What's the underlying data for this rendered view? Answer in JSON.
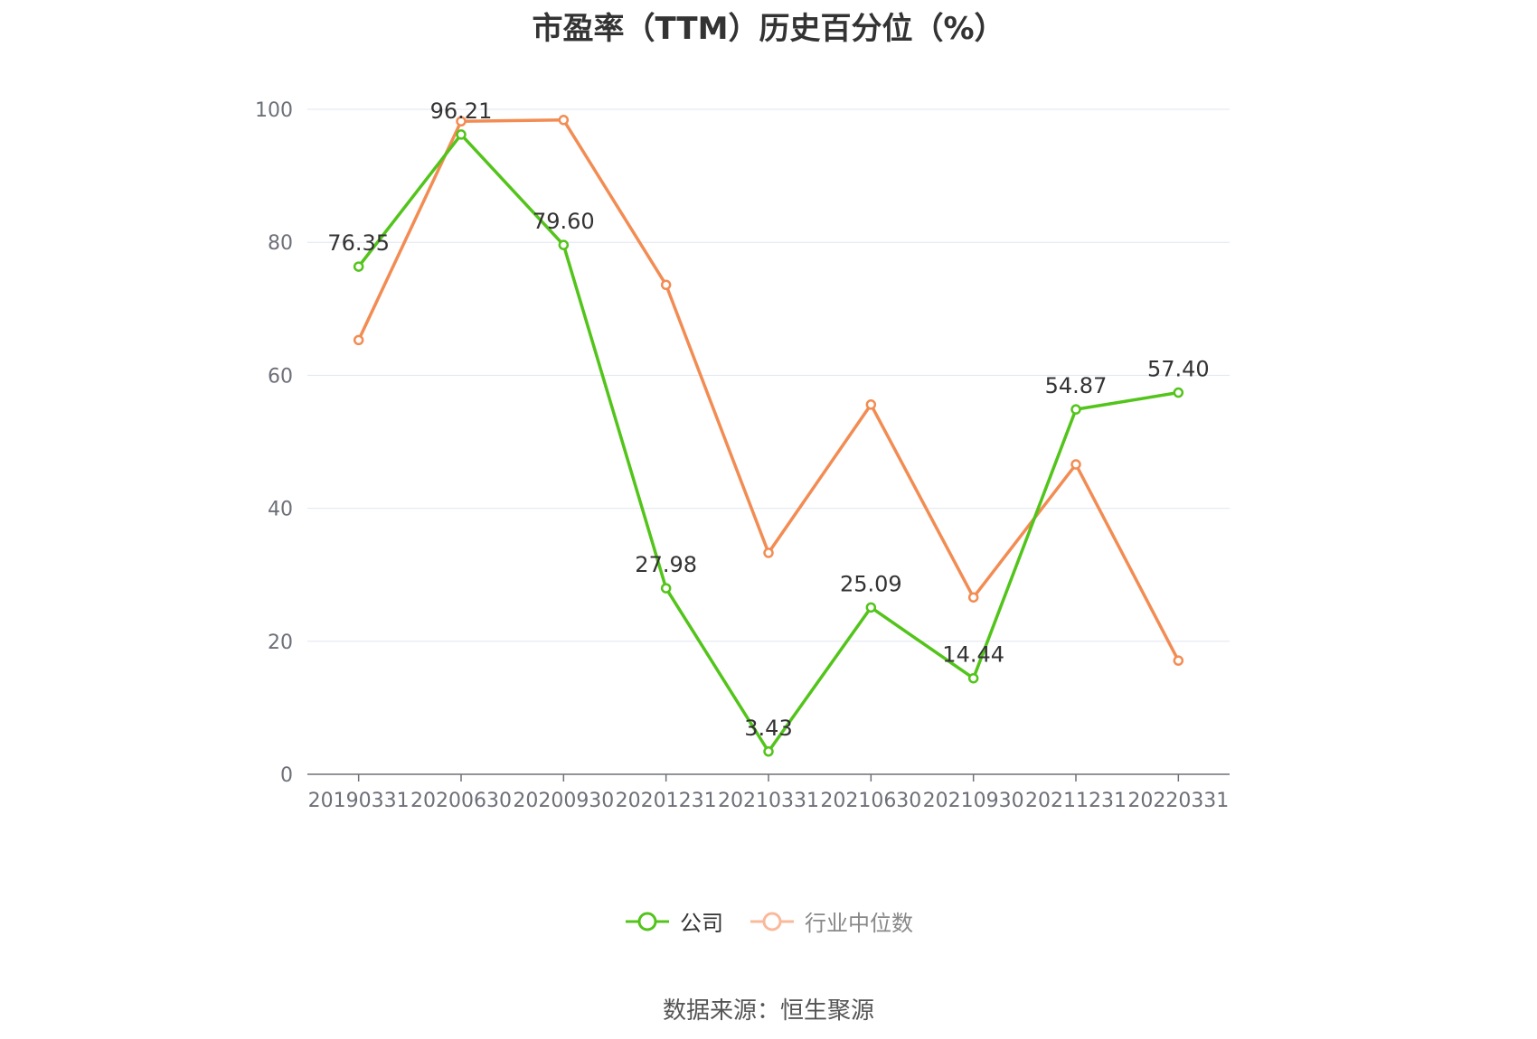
{
  "chart_data": {
    "type": "line",
    "title": "市盈率（TTM）历史百分位（%）",
    "categories": [
      "20190331",
      "20200630",
      "20200930",
      "20201231",
      "20210331",
      "20210630",
      "20210930",
      "20211231",
      "20220331"
    ],
    "ylim": [
      0,
      100
    ],
    "yticks": [
      0,
      20,
      40,
      60,
      80,
      100
    ],
    "grid": true,
    "legend_position": "bottom",
    "series": [
      {
        "name": "公司",
        "color": "#52c41a",
        "values": [
          76.35,
          96.21,
          79.6,
          27.98,
          3.43,
          25.09,
          14.44,
          54.87,
          57.4
        ],
        "labels": [
          "76.35",
          "96.21",
          "79.60",
          "27.98",
          "3.43",
          "25.09",
          "14.44",
          "54.87",
          "57.40"
        ]
      },
      {
        "name": "行业中位数",
        "color": "#f28c53",
        "values": [
          65.3,
          98.2,
          98.4,
          73.6,
          33.3,
          55.6,
          26.6,
          46.6,
          17.1
        ]
      }
    ]
  },
  "legend": {
    "company": "公司",
    "industry": "行业中位数"
  },
  "source": "数据来源：恒生聚源"
}
